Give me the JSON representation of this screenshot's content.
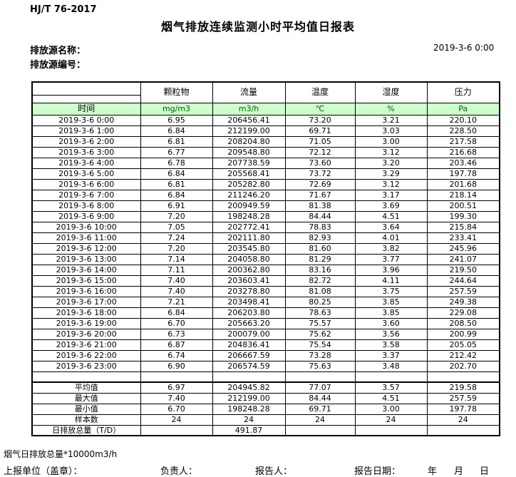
{
  "header": {
    "standard": "HJ/T  76-2017",
    "title": "烟气排放连续监测小时平均值日报表",
    "source_name_label": "排放源名称：",
    "source_code_label": "排放源编号：",
    "datetime": "2019-3-6  0:00"
  },
  "table": {
    "time_label": "时间",
    "column_headers": [
      "颗粒物",
      "流量",
      "温度",
      "湿度",
      "压力"
    ],
    "units": [
      "mg/m3",
      "m3/h",
      "℃",
      "%",
      "Pa"
    ],
    "unit_row_bg": "#ccffcc",
    "unit_text_color": "#006600",
    "rows": [
      {
        "time": "2019-3-6 0:00",
        "values": [
          "6.95",
          "206456.41",
          "73.20",
          "3.21",
          "220.10"
        ]
      },
      {
        "time": "2019-3-6 1:00",
        "values": [
          "6.84",
          "212199.00",
          "69.71",
          "3.03",
          "228.50"
        ]
      },
      {
        "time": "2019-3-6 2:00",
        "values": [
          "6.81",
          "208204.80",
          "71.05",
          "3.00",
          "217.58"
        ]
      },
      {
        "time": "2019-3-6 3:00",
        "values": [
          "6.77",
          "209548.80",
          "72.12",
          "3.12",
          "216.68"
        ]
      },
      {
        "time": "2019-3-6 4:00",
        "values": [
          "6.78",
          "207738.59",
          "73.60",
          "3.20",
          "203.46"
        ]
      },
      {
        "time": "2019-3-6 5:00",
        "values": [
          "6.84",
          "205568.41",
          "73.72",
          "3.29",
          "197.78"
        ]
      },
      {
        "time": "2019-3-6 6:00",
        "values": [
          "6.81",
          "205282.80",
          "72.69",
          "3.12",
          "201.68"
        ]
      },
      {
        "time": "2019-3-6 7:00",
        "values": [
          "6.84",
          "211246.20",
          "71.67",
          "3.17",
          "218.14"
        ]
      },
      {
        "time": "2019-3-6 8:00",
        "values": [
          "6.91",
          "200949.59",
          "81.38",
          "3.69",
          "200.51"
        ]
      },
      {
        "time": "2019-3-6 9:00",
        "values": [
          "7.20",
          "198248.28",
          "84.44",
          "4.51",
          "199.30"
        ]
      },
      {
        "time": "2019-3-6 10:00",
        "values": [
          "7.05",
          "202772.41",
          "78.83",
          "3.64",
          "215.84"
        ]
      },
      {
        "time": "2019-3-6 11:00",
        "values": [
          "7.24",
          "202111.80",
          "82.93",
          "4.01",
          "233.41"
        ]
      },
      {
        "time": "2019-3-6 12:00",
        "values": [
          "7.20",
          "203545.80",
          "81.60",
          "3.82",
          "245.96"
        ]
      },
      {
        "time": "2019-3-6 13:00",
        "values": [
          "7.14",
          "204058.80",
          "81.29",
          "3.77",
          "241.07"
        ]
      },
      {
        "time": "2019-3-6 14:00",
        "values": [
          "7.11",
          "200362.80",
          "83.16",
          "3.96",
          "219.50"
        ]
      },
      {
        "time": "2019-3-6 15:00",
        "values": [
          "7.40",
          "203603.41",
          "82.72",
          "4.11",
          "244.64"
        ]
      },
      {
        "time": "2019-3-6 16:00",
        "values": [
          "7.40",
          "203278.80",
          "81.08",
          "3.75",
          "257.59"
        ]
      },
      {
        "time": "2019-3-6 17:00",
        "values": [
          "7.21",
          "203498.41",
          "80.25",
          "3.85",
          "249.38"
        ]
      },
      {
        "time": "2019-3-6 18:00",
        "values": [
          "6.84",
          "206203.80",
          "78.63",
          "3.85",
          "229.08"
        ]
      },
      {
        "time": "2019-3-6 19:00",
        "values": [
          "6.70",
          "205663.20",
          "75.57",
          "3.60",
          "208.50"
        ]
      },
      {
        "time": "2019-3-6 20:00",
        "values": [
          "6.73",
          "200079.00",
          "75.62",
          "3.56",
          "200.99"
        ]
      },
      {
        "time": "2019-3-6 21:00",
        "values": [
          "6.87",
          "204836.41",
          "75.54",
          "3.58",
          "205.05"
        ]
      },
      {
        "time": "2019-3-6 22:00",
        "values": [
          "6.74",
          "206667.59",
          "73.28",
          "3.37",
          "212.42"
        ]
      },
      {
        "time": "2019-3-6 23:00",
        "values": [
          "6.90",
          "206574.59",
          "75.63",
          "3.48",
          "202.70"
        ]
      }
    ],
    "summary_rows": [
      {
        "label": "平均值",
        "values": [
          "6.97",
          "204945.82",
          "77.07",
          "3.57",
          "219.58"
        ]
      },
      {
        "label": "最大值",
        "values": [
          "7.40",
          "212199.00",
          "84.44",
          "4.51",
          "257.59"
        ]
      },
      {
        "label": "最小值",
        "values": [
          "6.70",
          "198248.28",
          "69.71",
          "3.00",
          "197.78"
        ]
      },
      {
        "label": "样本数",
        "values": [
          "24",
          "24",
          "24",
          "24",
          "24"
        ]
      },
      {
        "label": "日排放总量（T/D）",
        "values": [
          "",
          "491.87",
          "",
          "",
          ""
        ]
      }
    ]
  },
  "footer": {
    "note": "烟气日排放总量*10000m3/h",
    "report_unit_label": "上报单位（盖章）：",
    "responsible_label": "负责人：",
    "reporter_label": "报告人：",
    "report_date_label": "报告日期：",
    "year_label": "年",
    "month_label": "月",
    "day_label": "日"
  }
}
